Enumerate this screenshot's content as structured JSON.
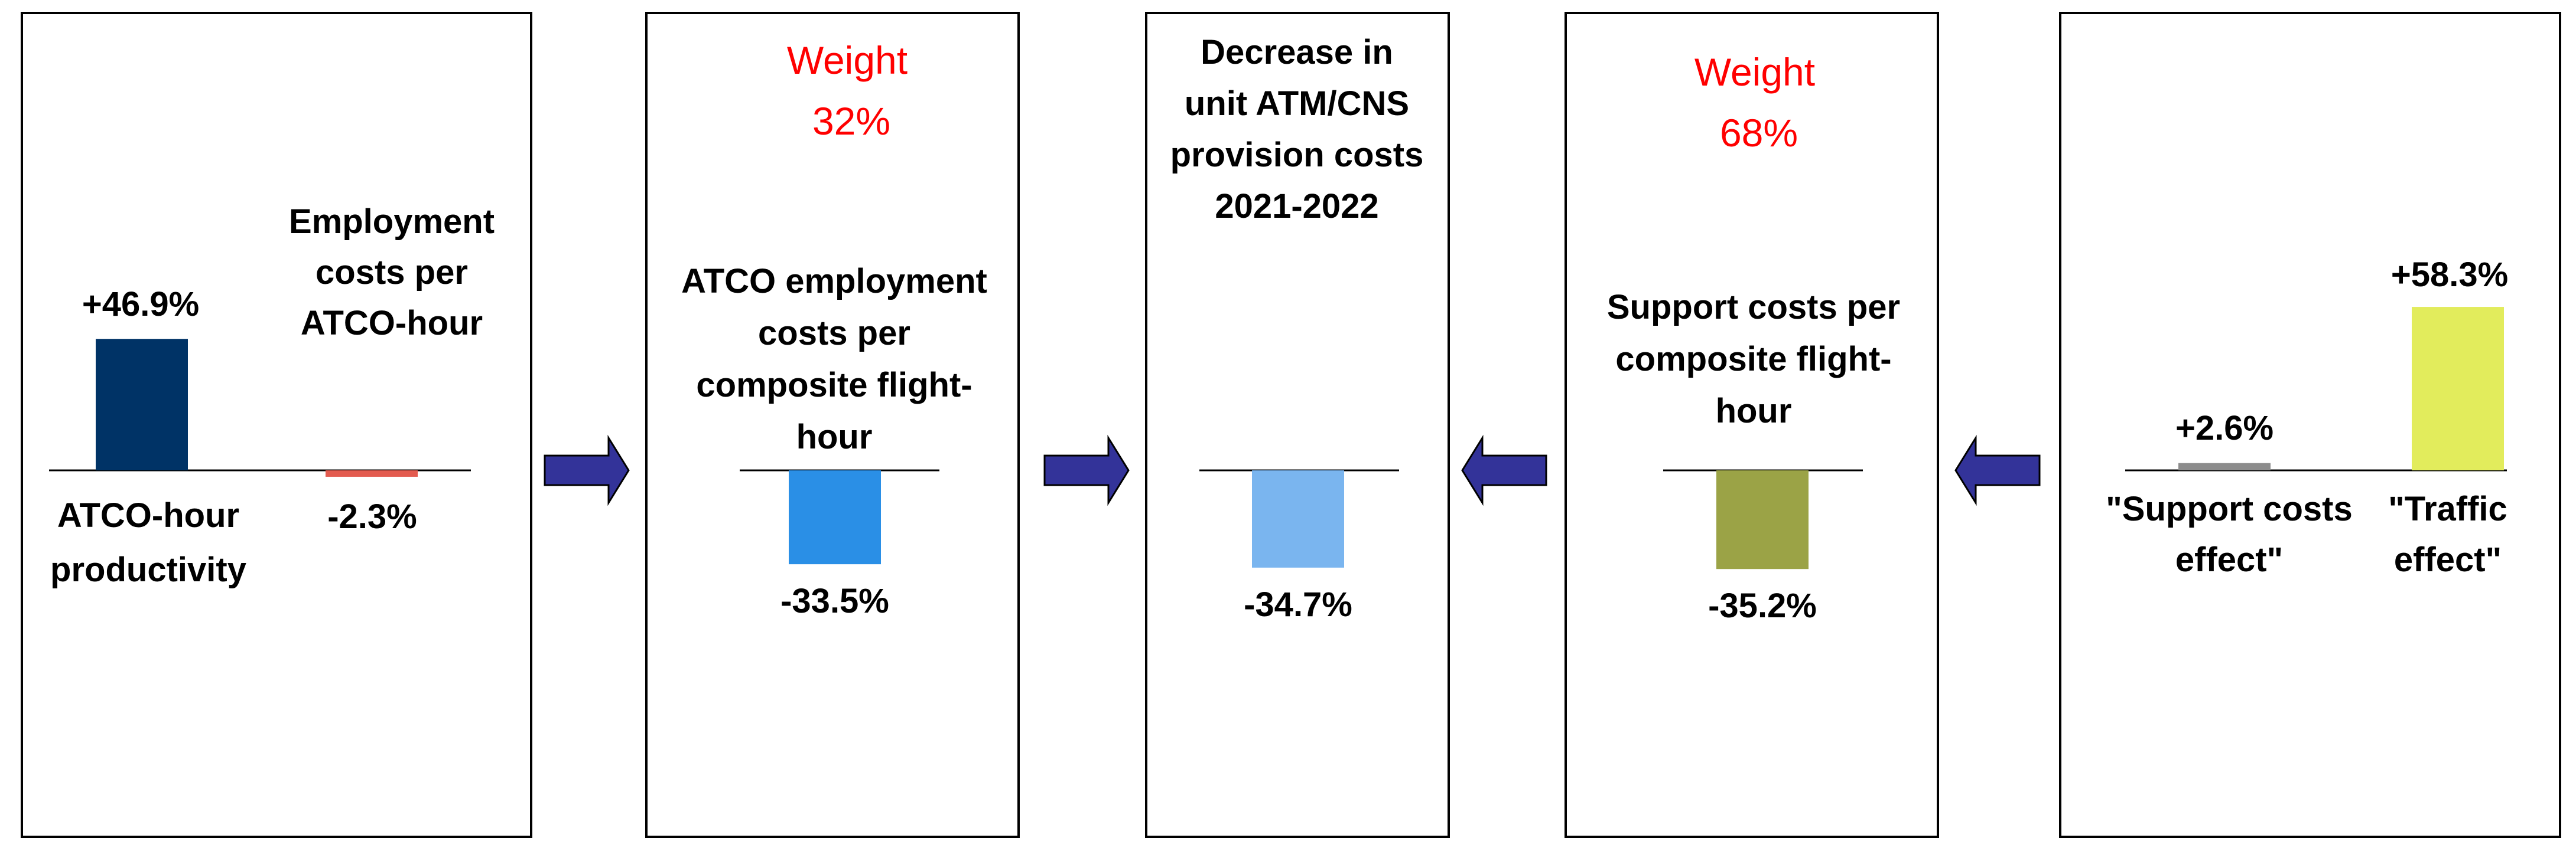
{
  "colors": {
    "panel_border": "#000000",
    "arrow_fill": "#333399",
    "baseline": "#000000",
    "weight_text": "#ff0000"
  },
  "chart_data": [
    {
      "type": "bar",
      "categories": [
        "ATCO-hour productivity",
        "Employment costs per ATCO-hour"
      ],
      "values": [
        46.9,
        -2.3
      ],
      "value_labels": [
        "+46.9%",
        "-2.3%"
      ],
      "colors": [
        "#003366",
        "#e35b4f"
      ],
      "unit": "%"
    },
    {
      "type": "bar",
      "weight_label": "Weight",
      "weight_value": "32%",
      "categories": [
        "ATCO employment costs per composite flight-hour"
      ],
      "values": [
        -33.5
      ],
      "value_labels": [
        "-33.5%"
      ],
      "colors": [
        "#2a8fe6"
      ],
      "unit": "%"
    },
    {
      "type": "bar",
      "categories": [
        "Decrease in unit ATM/CNS provision costs 2021-2022"
      ],
      "values": [
        -34.7
      ],
      "value_labels": [
        "-34.7%"
      ],
      "colors": [
        "#7ab5ef"
      ],
      "unit": "%"
    },
    {
      "type": "bar",
      "weight_label": "Weight",
      "weight_value": "68%",
      "categories": [
        "Support costs per composite flight-hour"
      ],
      "values": [
        -35.2
      ],
      "value_labels": [
        "-35.2%"
      ],
      "colors": [
        "#9ba346"
      ],
      "unit": "%"
    },
    {
      "type": "bar",
      "categories": [
        "\"Support costs effect\"",
        "\"Traffic effect\""
      ],
      "values": [
        2.6,
        58.3
      ],
      "value_labels": [
        "+2.6%",
        "+58.3%"
      ],
      "colors": [
        "#8c8c8c",
        "#e2ec5c"
      ],
      "unit": "%"
    }
  ],
  "text": {
    "p1": {
      "cat1_line1": "ATCO-hour",
      "cat1_line2": "productivity",
      "cat2_line1": "Employment",
      "cat2_line2": "costs per",
      "cat2_line3": "ATCO-hour"
    },
    "p2": {
      "title_line1": "ATCO employment",
      "title_line2": "costs per",
      "title_line3": "composite flight-",
      "title_line4": "hour"
    },
    "p3": {
      "title_line1": "Decrease in",
      "title_line2": "unit ATM/CNS",
      "title_line3": "provision costs",
      "title_line4": "2021-2022"
    },
    "p4": {
      "title_line1": "Support costs per",
      "title_line2": "composite flight-",
      "title_line3": "hour"
    },
    "p5": {
      "cat1_line1": "\"Support costs",
      "cat1_line2": "effect\"",
      "cat2_line1": "\"Traffic",
      "cat2_line2": "effect\""
    }
  }
}
